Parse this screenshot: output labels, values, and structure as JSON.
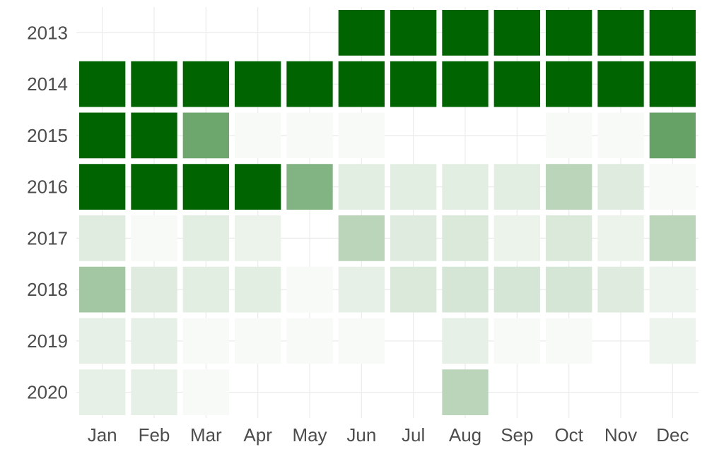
{
  "chart_data": {
    "type": "heatmap",
    "title": "",
    "xlabel": "",
    "ylabel": "",
    "x_categories": [
      "Jan",
      "Feb",
      "Mar",
      "Apr",
      "May",
      "Jun",
      "Jul",
      "Aug",
      "Sep",
      "Oct",
      "Nov",
      "Dec"
    ],
    "y_categories": [
      "2013",
      "2014",
      "2015",
      "2016",
      "2017",
      "2018",
      "2019",
      "2020"
    ],
    "value_range": [
      0,
      1
    ],
    "color_low": "#ffffff",
    "color_high": "#006400",
    "grid": true,
    "legend": "none",
    "values": [
      [
        null,
        null,
        null,
        null,
        null,
        1.0,
        1.0,
        1.0,
        1.0,
        1.0,
        1.0,
        1.0
      ],
      [
        1.0,
        1.0,
        1.0,
        1.0,
        1.0,
        1.0,
        1.0,
        1.0,
        1.0,
        1.0,
        1.0,
        1.0
      ],
      [
        1.0,
        1.0,
        0.57,
        0.03,
        0.03,
        0.03,
        null,
        null,
        null,
        0.03,
        0.03,
        0.6
      ],
      [
        1.0,
        1.0,
        1.0,
        1.0,
        0.49,
        0.11,
        0.11,
        0.11,
        0.11,
        0.27,
        0.13,
        0.03
      ],
      [
        0.12,
        0.03,
        0.11,
        0.08,
        null,
        0.27,
        0.13,
        0.14,
        0.08,
        0.14,
        0.08,
        0.27
      ],
      [
        0.36,
        0.13,
        0.11,
        0.11,
        0.03,
        0.1,
        0.14,
        0.16,
        0.16,
        0.16,
        0.13,
        0.07
      ],
      [
        0.1,
        0.1,
        0.03,
        0.03,
        0.03,
        0.03,
        null,
        0.1,
        0.03,
        0.03,
        null,
        0.07
      ],
      [
        0.1,
        0.1,
        0.03,
        null,
        null,
        null,
        null,
        0.27,
        null,
        null,
        null,
        null
      ]
    ]
  }
}
